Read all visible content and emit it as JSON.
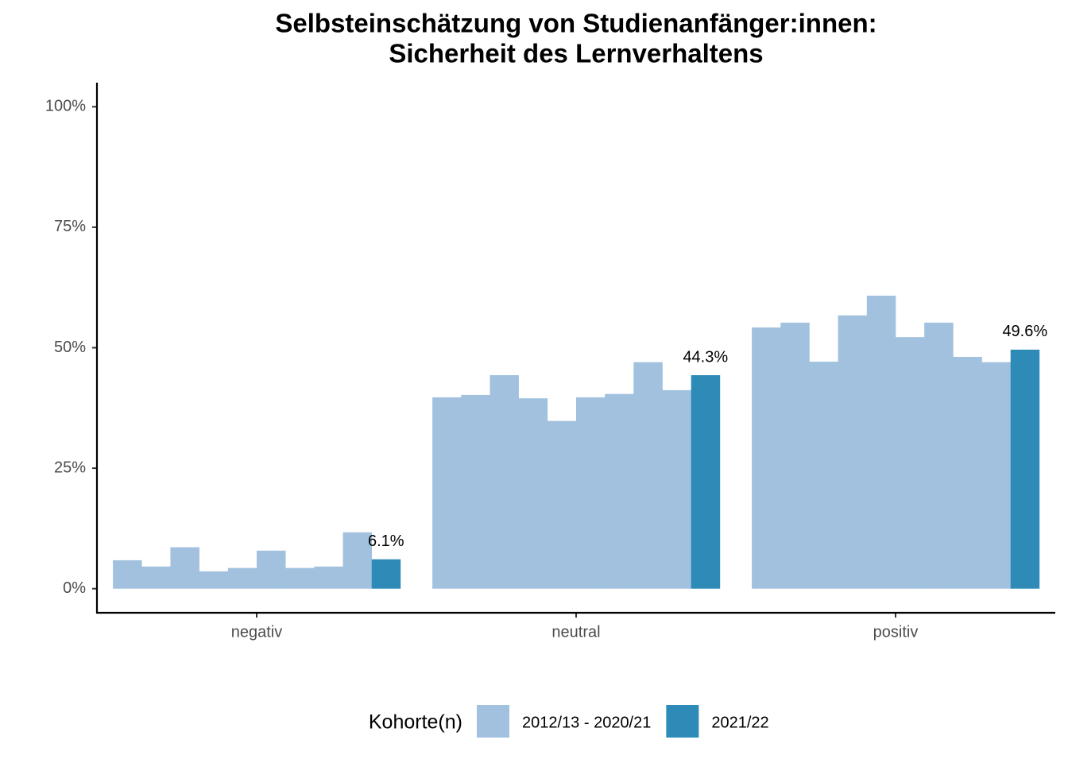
{
  "chart_data": {
    "type": "bar",
    "title": [
      "Selbsteinschätzung von Studienanfänger:innen:",
      "Sicherheit des Lernverhaltens"
    ],
    "categories": [
      "negativ",
      "neutral",
      "positiv"
    ],
    "series": [
      {
        "name": "2012/13 - 2020/21",
        "color": "#a1c1de",
        "values": [
          [
            5.9,
            4.6,
            8.6,
            3.6,
            4.3,
            7.9,
            4.3,
            4.6,
            11.7
          ],
          [
            39.7,
            40.2,
            44.3,
            39.5,
            34.8,
            39.7,
            40.4,
            47.0,
            41.2
          ],
          [
            54.2,
            55.2,
            47.1,
            56.7,
            60.8,
            52.2,
            55.2,
            48.1,
            47.0
          ]
        ]
      },
      {
        "name": "2021/22",
        "color": "#2e8bb8",
        "values": [
          6.1,
          44.3,
          49.6
        ],
        "value_labels": [
          "6.1%",
          "44.3%",
          "49.6%"
        ]
      }
    ],
    "legend_title": "Kohorte(n)",
    "legend_position": "bottom",
    "ylim": [
      -5,
      105
    ],
    "yticks": [
      {
        "value": 0,
        "label": "0%"
      },
      {
        "value": 25,
        "label": "25%"
      },
      {
        "value": 50,
        "label": "50%"
      },
      {
        "value": 75,
        "label": "75%"
      },
      {
        "value": 100,
        "label": "100%"
      }
    ],
    "grid": false
  }
}
